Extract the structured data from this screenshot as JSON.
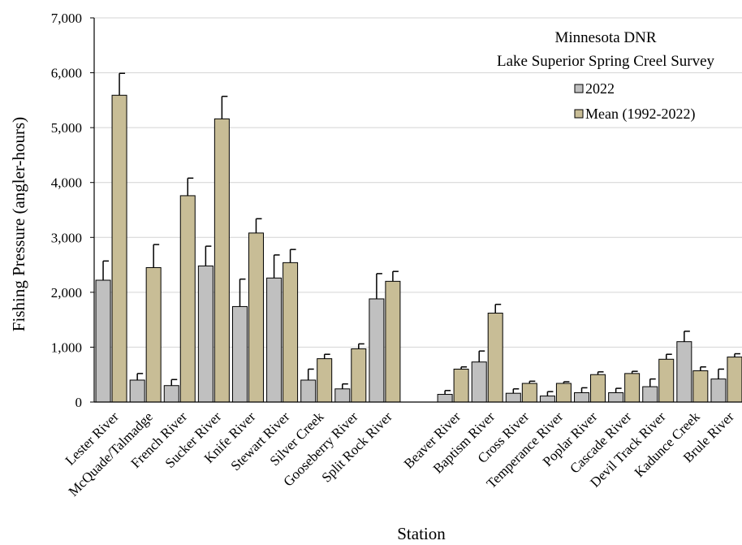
{
  "chart_data": {
    "type": "bar",
    "title": [
      "Minnesota DNR",
      "Lake Superior Spring Creel Survey"
    ],
    "xlabel": "Station",
    "ylabel": "Fishing Pressure (angler-hours)",
    "ylim": [
      0,
      7000
    ],
    "yticks": [
      "0",
      "1,000",
      "2,000",
      "3,000",
      "4,000",
      "5,000",
      "6,000",
      "7,000"
    ],
    "grid": true,
    "legend_position": "top-right",
    "categories": [
      "Lester River",
      "McQuade/Talmadge",
      "French River",
      "Sucker River",
      "Knife River",
      "Stewart River",
      "Silver Creek",
      "Gooseberry River",
      "Split Rock River",
      "",
      "Beaver River",
      "Baptism River",
      "Cross River",
      "Temperance River",
      "Poplar River",
      "Cascade River",
      "Devil Track River",
      "Kadunce Creek",
      "Brule River"
    ],
    "series": [
      {
        "name": "2022",
        "color": "#c0c0c0",
        "values": [
          2220,
          400,
          300,
          2480,
          1740,
          2260,
          400,
          240,
          1880,
          null,
          140,
          730,
          160,
          110,
          170,
          170,
          280,
          1100,
          420
        ],
        "errors": [
          350,
          120,
          110,
          360,
          500,
          420,
          200,
          90,
          460,
          null,
          70,
          200,
          80,
          80,
          90,
          80,
          140,
          190,
          180
        ]
      },
      {
        "name": "Mean (1992-2022)",
        "color": "#c8bd96",
        "values": [
          5590,
          2450,
          3760,
          5160,
          3080,
          2540,
          790,
          970,
          2200,
          null,
          600,
          1620,
          340,
          340,
          500,
          520,
          780,
          570,
          820
        ],
        "errors": [
          400,
          420,
          320,
          410,
          260,
          240,
          80,
          90,
          180,
          null,
          40,
          160,
          40,
          30,
          50,
          40,
          90,
          70,
          60
        ]
      }
    ]
  }
}
